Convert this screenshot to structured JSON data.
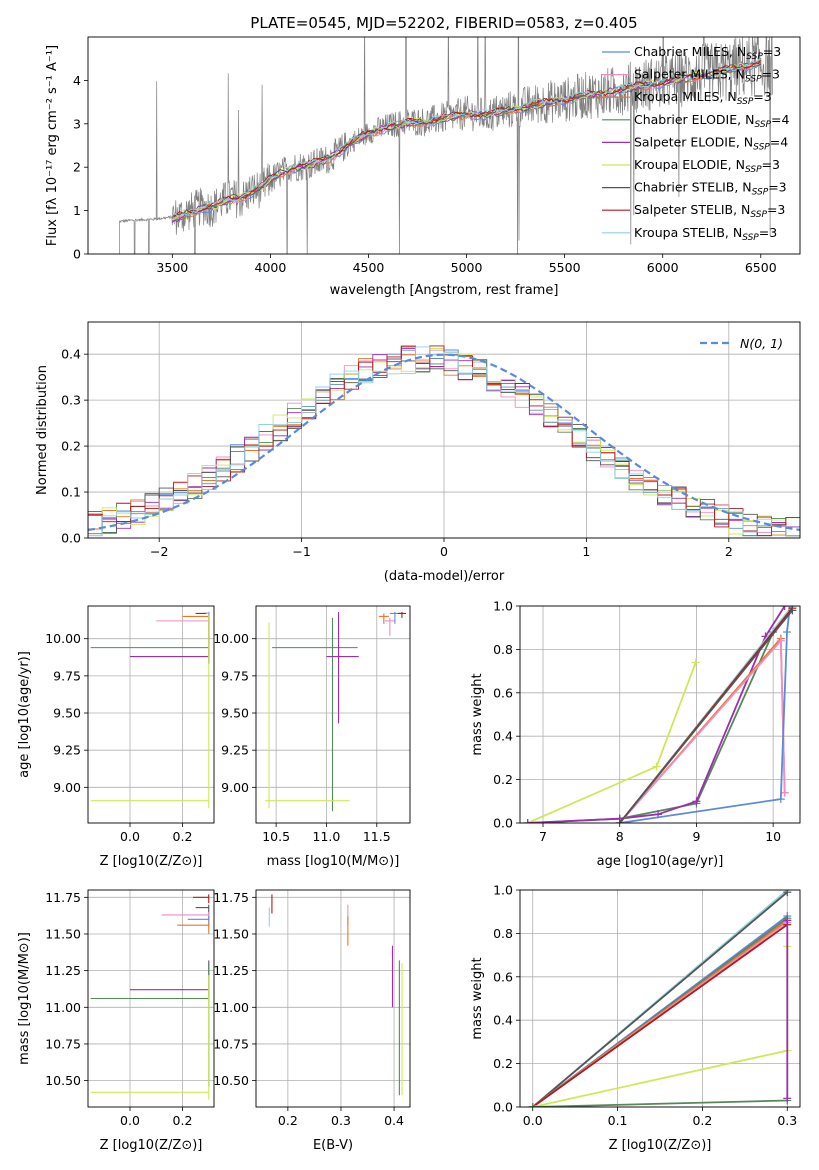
{
  "chart_data": [
    {
      "id": "spectrum",
      "type": "line",
      "title": "PLATE=0545, MJD=52202, FIBERID=0583, z=0.405",
      "xlabel": "wavelength [Angstrom, rest frame]",
      "ylabel": "Flux [fλ 10⁻¹⁷ erg cm⁻² s⁻¹ A⁻¹]",
      "xlim": [
        3070,
        6700
      ],
      "ylim": [
        0,
        5
      ],
      "xticks": [
        3500,
        4000,
        4500,
        5000,
        5500,
        6000,
        6500
      ],
      "yticks": [
        0,
        1,
        2,
        3,
        4
      ],
      "data_color": "#808080",
      "data_x": [
        3230,
        3300,
        3400,
        3500,
        3550,
        3600,
        3650,
        3700,
        3750,
        3800,
        3850,
        3900,
        3950,
        4000,
        4100,
        4200,
        4300,
        4400,
        4500,
        4600,
        4700,
        4800,
        4900,
        5000,
        5100,
        5200,
        5300,
        5400,
        5500,
        5600,
        5700,
        5800,
        5900,
        6000,
        6100,
        6200,
        6300,
        6400,
        6500
      ],
      "data_y": [
        0.75,
        0.78,
        0.8,
        0.85,
        0.9,
        1.0,
        1.1,
        1.05,
        1.2,
        1.3,
        1.25,
        1.45,
        1.5,
        1.7,
        2.0,
        2.05,
        2.2,
        2.55,
        2.8,
        2.95,
        3.05,
        3.05,
        3.15,
        3.25,
        3.2,
        3.3,
        3.4,
        3.5,
        3.55,
        3.65,
        3.7,
        3.8,
        3.9,
        3.95,
        4.05,
        4.15,
        4.2,
        4.3,
        4.4
      ],
      "model_x": [
        3500,
        3550,
        3600,
        3650,
        3700,
        3750,
        3800,
        3850,
        3900,
        3950,
        4000,
        4100,
        4200,
        4300,
        4400,
        4500,
        4600,
        4700,
        4800,
        4900,
        5000,
        5100,
        5200,
        5300,
        5400,
        5500,
        5600,
        5700,
        5800,
        5900,
        6000,
        6100,
        6200,
        6300,
        6400,
        6500
      ],
      "model_y": [
        0.8,
        0.88,
        0.95,
        1.05,
        1.08,
        1.18,
        1.25,
        1.3,
        1.42,
        1.52,
        1.7,
        1.98,
        2.05,
        2.2,
        2.52,
        2.78,
        2.92,
        3.02,
        3.04,
        3.14,
        3.22,
        3.2,
        3.3,
        3.38,
        3.48,
        3.55,
        3.64,
        3.7,
        3.8,
        3.88,
        3.95,
        4.04,
        4.12,
        4.2,
        4.3,
        4.4
      ],
      "series": [
        {
          "name": "Chabrier MILES, N_SSP=3",
          "color": "#5b8bd8"
        },
        {
          "name": "Salpeter MILES, N_SSP=3",
          "color": "#ee8ec4"
        },
        {
          "name": "Kroupa MILES, N_SSP=3",
          "color": "#e8772d"
        },
        {
          "name": "Chabrier ELODIE, N_SSP=4",
          "color": "#55885a"
        },
        {
          "name": "Salpeter ELODIE, N_SSP=4",
          "color": "#9b2fae"
        },
        {
          "name": "Kroupa ELODIE, N_SSP=3",
          "color": "#cfe85a"
        },
        {
          "name": "Chabrier STELIB, N_SSP=3",
          "color": "#555555"
        },
        {
          "name": "Salpeter STELIB, N_SSP=3",
          "color": "#b01b1b"
        },
        {
          "name": "Kroupa STELIB, N_SSP=3",
          "color": "#8fd2e0"
        }
      ],
      "legend_parts": [
        [
          "Chabrier MILES, N",
          "SSP",
          "=3"
        ],
        [
          "Salpeter MILES, N",
          "SSP",
          "=3"
        ],
        [
          "Kroupa MILES, N",
          "SSP",
          "=3"
        ],
        [
          "Chabrier ELODIE, N",
          "SSP",
          "=4"
        ],
        [
          "Salpeter ELODIE, N",
          "SSP",
          "=4"
        ],
        [
          "Kroupa ELODIE, N",
          "SSP",
          "=3"
        ],
        [
          "Chabrier STELIB, N",
          "SSP",
          "=3"
        ],
        [
          "Salpeter STELIB, N",
          "SSP",
          "=3"
        ],
        [
          "Kroupa STELIB, N",
          "SSP",
          "=3"
        ]
      ],
      "legend_loc": "top-right"
    },
    {
      "id": "residuals",
      "type": "histogram",
      "xlabel": "(data-model)/error",
      "ylabel": "Normed distribution",
      "xlim": [
        -2.5,
        2.5
      ],
      "ylim": [
        0,
        0.47
      ],
      "xticks": [
        -2,
        -1,
        0,
        1,
        2
      ],
      "yticks": [
        0.0,
        0.1,
        0.2,
        0.3,
        0.4
      ],
      "grid": true,
      "bin_width": 0.1,
      "gaussian_label": "N(0, 1)",
      "gaussian_color": "#5b8bd8",
      "legend_loc": "top-right"
    },
    {
      "id": "age_vs_Z",
      "type": "errorbar",
      "xlabel": "Z [log10(Z/Z⊙)]",
      "ylabel": "age [log10(age/yr)]",
      "xlim": [
        -0.16,
        0.32
      ],
      "ylim": [
        8.76,
        10.22
      ],
      "xticks": [
        0.0,
        0.2
      ],
      "yticks": [
        9.0,
        9.25,
        9.5,
        9.75,
        10.0
      ],
      "grid": true,
      "points": [
        {
          "x": 0.3,
          "y": 10.17,
          "xerr": [
            0.05,
            0
          ],
          "yerr": [
            0.03,
            0.01
          ],
          "c": 7
        },
        {
          "x": 0.3,
          "y": 10.15,
          "xerr": [
            0.1,
            0
          ],
          "yerr": [
            0.02,
            0.02
          ],
          "c": 2
        },
        {
          "x": 0.3,
          "y": 10.12,
          "xerr": [
            0.2,
            0
          ],
          "yerr": [
            0.01,
            0.02
          ],
          "c": 1
        },
        {
          "x": 0.3,
          "y": 10.17,
          "xerr": [
            0.02,
            0
          ],
          "yerr": [
            0.01,
            0.01
          ],
          "c": 6
        },
        {
          "x": 0.3,
          "y": 9.94,
          "xerr": [
            0.45,
            0
          ],
          "yerr": [
            0.1,
            0.2
          ],
          "c": 3
        },
        {
          "x": 0.3,
          "y": 9.88,
          "xerr": [
            0.3,
            0
          ],
          "yerr": [
            0.05,
            0.3
          ],
          "c": 4
        },
        {
          "x": 0.3,
          "y": 8.91,
          "xerr": [
            0.45,
            0
          ],
          "yerr": [
            0.05,
            1.25
          ],
          "c": 5
        },
        {
          "x": 0.3,
          "y": 10.17,
          "xerr": [
            0.01,
            0
          ],
          "yerr": [
            0.01,
            0.01
          ],
          "c": 8
        }
      ]
    },
    {
      "id": "age_vs_mass",
      "type": "errorbar",
      "xlabel": "mass [log10(M/M⊙)]",
      "ylabel": "",
      "xlim": [
        10.3,
        11.83
      ],
      "ylim": [
        8.76,
        10.22
      ],
      "xticks": [
        10.5,
        11.0,
        11.5
      ],
      "yticks": [
        9.0,
        9.25,
        9.5,
        9.75,
        10.0
      ],
      "grid": true,
      "points": [
        {
          "x": 11.57,
          "y": 10.15,
          "xerr": [
            0.05,
            0.05
          ],
          "yerr": [
            0.05,
            0.02
          ],
          "c": 2
        },
        {
          "x": 11.63,
          "y": 10.12,
          "xerr": [
            0.05,
            0.05
          ],
          "yerr": [
            0.1,
            0.02
          ],
          "c": 1
        },
        {
          "x": 11.68,
          "y": 10.17,
          "xerr": [
            0.05,
            0.08
          ],
          "yerr": [
            0.07,
            0.01
          ],
          "c": 0
        },
        {
          "x": 11.75,
          "y": 10.17,
          "xerr": [
            0.04,
            0.04
          ],
          "yerr": [
            0.03,
            0.01
          ],
          "c": 7
        },
        {
          "x": 11.06,
          "y": 9.94,
          "xerr": [
            0.6,
            0.25
          ],
          "yerr": [
            1.1,
            0.2
          ],
          "c": 3
        },
        {
          "x": 11.12,
          "y": 9.88,
          "xerr": [
            0.12,
            0.2
          ],
          "yerr": [
            0.45,
            0.3
          ],
          "c": 4
        },
        {
          "x": 10.43,
          "y": 8.91,
          "xerr": [
            0.04,
            0.8
          ],
          "yerr": [
            0.05,
            1.2
          ],
          "c": 5
        }
      ]
    },
    {
      "id": "mw_vs_age",
      "type": "line",
      "xlabel": "age [log10(age/yr)]",
      "ylabel": "mass weight",
      "xlim": [
        6.7,
        10.35
      ],
      "ylim": [
        0.0,
        1.0
      ],
      "xticks": [
        7,
        8,
        9,
        10
      ],
      "yticks": [
        0.0,
        0.2,
        0.4,
        0.6,
        0.8,
        1.0
      ],
      "grid": true,
      "series": [
        {
          "c": 5,
          "x": [
            6.8,
            8.48,
            8.99
          ],
          "y": [
            0.0,
            0.26,
            0.74
          ]
        },
        {
          "c": 3,
          "x": [
            6.8,
            8.0,
            9.0,
            10.0,
            10.25
          ],
          "y": [
            0.0,
            0.02,
            0.09,
            0.88,
            1.0
          ]
        },
        {
          "c": 4,
          "x": [
            6.8,
            8.0,
            8.5,
            9.0,
            9.9,
            10.15
          ],
          "y": [
            0.0,
            0.02,
            0.04,
            0.1,
            0.86,
            1.0
          ]
        },
        {
          "c": 2,
          "x": [
            8.0,
            10.1,
            10.15
          ],
          "y": [
            0.0,
            0.85,
            0.14
          ]
        },
        {
          "c": 1,
          "x": [
            8.0,
            10.1,
            10.15
          ],
          "y": [
            0.0,
            0.84,
            0.14
          ]
        },
        {
          "c": 0,
          "x": [
            8.0,
            10.1,
            10.18,
            10.22
          ],
          "y": [
            0.0,
            0.11,
            0.88,
            1.0
          ]
        },
        {
          "c": 8,
          "x": [
            8.0,
            10.25
          ],
          "y": [
            0.0,
            1.0
          ]
        },
        {
          "c": 7,
          "x": [
            8.0,
            10.25
          ],
          "y": [
            0.0,
            0.99
          ]
        },
        {
          "c": 6,
          "x": [
            8.0,
            10.25
          ],
          "y": [
            0.0,
            0.98
          ]
        }
      ]
    },
    {
      "id": "mass_vs_Z",
      "type": "errorbar",
      "xlabel": "Z [log10(Z/Z⊙)]",
      "ylabel": "mass [log10(M/M⊙)]",
      "xlim": [
        -0.16,
        0.32
      ],
      "ylim": [
        10.32,
        11.8
      ],
      "xticks": [
        0.0,
        0.2
      ],
      "yticks": [
        10.5,
        10.75,
        11.0,
        11.25,
        11.5,
        11.75
      ],
      "grid": true,
      "points": [
        {
          "x": 0.3,
          "y": 11.75,
          "xerr": [
            0.06,
            0
          ],
          "yerr": [
            0.04,
            0.02
          ],
          "c": 7
        },
        {
          "x": 0.3,
          "y": 11.68,
          "xerr": [
            0.05,
            0
          ],
          "yerr": [
            0.07,
            0.02
          ],
          "c": 6
        },
        {
          "x": 0.3,
          "y": 11.63,
          "xerr": [
            0.18,
            0
          ],
          "yerr": [
            0.04,
            0.02
          ],
          "c": 1
        },
        {
          "x": 0.3,
          "y": 11.6,
          "xerr": [
            0.08,
            0
          ],
          "yerr": [
            0.05,
            0.02
          ],
          "c": 0
        },
        {
          "x": 0.3,
          "y": 11.56,
          "xerr": [
            0.12,
            0
          ],
          "yerr": [
            0.06,
            0.02
          ],
          "c": 2
        },
        {
          "x": 0.3,
          "y": 11.12,
          "xerr": [
            0.3,
            0
          ],
          "yerr": [
            0.05,
            0.2
          ],
          "c": 4
        },
        {
          "x": 0.3,
          "y": 11.06,
          "xerr": [
            0.45,
            0
          ],
          "yerr": [
            0.6,
            0.25
          ],
          "c": 3
        },
        {
          "x": 0.3,
          "y": 10.42,
          "xerr": [
            0.45,
            0
          ],
          "yerr": [
            0.05,
            0.8
          ],
          "c": 5
        }
      ]
    },
    {
      "id": "mass_vs_EBV",
      "type": "errorbar",
      "xlabel": "E(B-V)",
      "ylabel": "",
      "xlim": [
        0.14,
        0.43
      ],
      "ylim": [
        10.32,
        11.8
      ],
      "xticks": [
        0.2,
        0.3,
        0.4
      ],
      "yticks": [
        10.5,
        10.75,
        11.0,
        11.25,
        11.5,
        11.75
      ],
      "grid": true,
      "points": [
        {
          "x": 0.17,
          "y": 11.7,
          "xerr": [
            0,
            0
          ],
          "yerr": [
            0.06,
            0.07
          ],
          "c": 7
        },
        {
          "x": 0.165,
          "y": 11.6,
          "xerr": [
            0,
            0
          ],
          "yerr": [
            0.05,
            0.08
          ],
          "c": 8
        },
        {
          "x": 0.313,
          "y": 11.62,
          "xerr": [
            0,
            0
          ],
          "yerr": [
            0.06,
            0.08
          ],
          "c": 1
        },
        {
          "x": 0.313,
          "y": 11.52,
          "xerr": [
            0,
            0
          ],
          "yerr": [
            0.1,
            0.1
          ],
          "c": 2
        },
        {
          "x": 0.397,
          "y": 11.2,
          "xerr": [
            0,
            0
          ],
          "yerr": [
            0.2,
            0.22
          ],
          "c": 4
        },
        {
          "x": 0.41,
          "y": 10.9,
          "xerr": [
            0,
            0
          ],
          "yerr": [
            0.5,
            0.42
          ],
          "c": 3
        },
        {
          "x": 0.415,
          "y": 10.85,
          "xerr": [
            0,
            0
          ],
          "yerr": [
            0.45,
            0.45
          ],
          "c": 5
        }
      ]
    },
    {
      "id": "mw_vs_Z",
      "type": "line",
      "xlabel": "Z [log10(Z/Z⊙)]",
      "ylabel": "mass weight",
      "xlim": [
        -0.015,
        0.315
      ],
      "ylim": [
        0.0,
        1.0
      ],
      "xticks": [
        0.0,
        0.1,
        0.2,
        0.3
      ],
      "yticks": [
        0.0,
        0.2,
        0.4,
        0.6,
        0.8,
        1.0
      ],
      "grid": true,
      "series": [
        {
          "c": 8,
          "x": [
            0.0,
            0.3
          ],
          "y": [
            0.0,
            1.0
          ]
        },
        {
          "c": 6,
          "x": [
            0.0,
            0.3
          ],
          "y": [
            0.0,
            0.99
          ]
        },
        {
          "c": 0,
          "x": [
            0.0,
            0.3
          ],
          "y": [
            0.0,
            0.88
          ]
        },
        {
          "c": 3,
          "x": [
            0.0,
            0.3
          ],
          "y": [
            0.0,
            0.87
          ]
        },
        {
          "c": 2,
          "x": [
            0.0,
            0.3
          ],
          "y": [
            0.0,
            0.86
          ]
        },
        {
          "c": 1,
          "x": [
            0.0,
            0.3
          ],
          "y": [
            0.0,
            0.85
          ]
        },
        {
          "c": 7,
          "x": [
            0.0,
            0.3
          ],
          "y": [
            0.0,
            0.84
          ]
        },
        {
          "c": 5,
          "x": [
            0.0,
            0.3,
            0.3
          ],
          "y": [
            0.0,
            0.26,
            0.74
          ]
        },
        {
          "c": 3,
          "x": [
            0.0,
            0.3
          ],
          "y": [
            0.0,
            0.03
          ]
        },
        {
          "c": 4,
          "x": [
            0.3,
            0.3
          ],
          "y": [
            0.04,
            0.86
          ]
        }
      ]
    }
  ]
}
